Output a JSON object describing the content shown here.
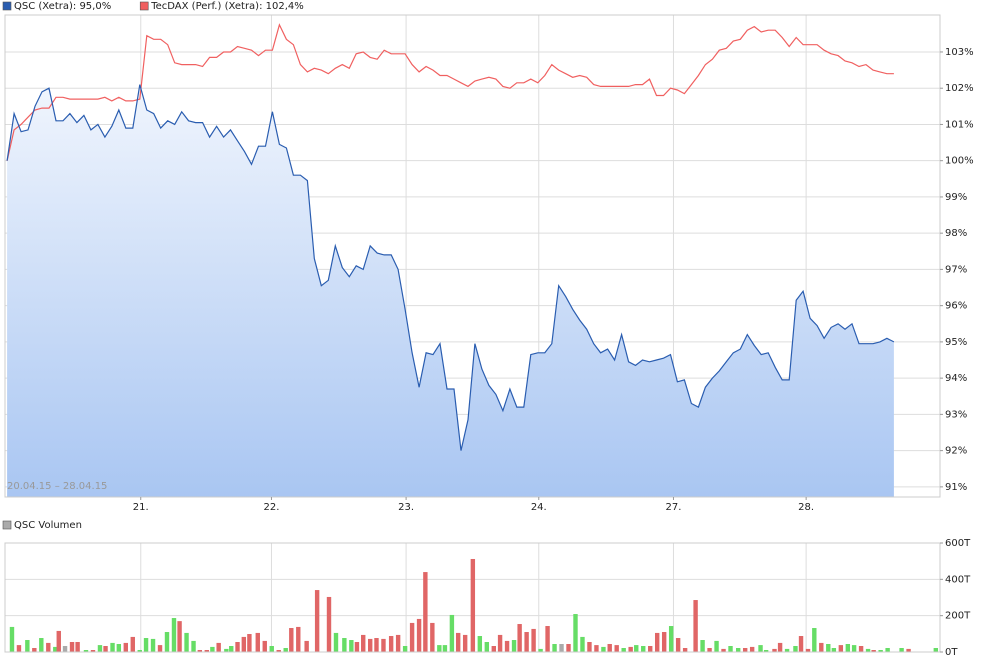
{
  "chart_data": [
    {
      "type": "line",
      "annotation": "20.04.15 – 28.04.15",
      "x": [
        0,
        1,
        2,
        3,
        4,
        5,
        6,
        7,
        8,
        9,
        10,
        11,
        12,
        13,
        14,
        15,
        16,
        17,
        18,
        19,
        20,
        21,
        22,
        23,
        24,
        25,
        26,
        27,
        28,
        29,
        30,
        31,
        32,
        33,
        34,
        35,
        36,
        37,
        38,
        39,
        40,
        41,
        42,
        43,
        44,
        45,
        46,
        47,
        48,
        49,
        50,
        51,
        52,
        53,
        54,
        55,
        56,
        57,
        58,
        59,
        60,
        61,
        62,
        63,
        64,
        65,
        66,
        67,
        68,
        69,
        70,
        71,
        72,
        73,
        74,
        75,
        76,
        77,
        78,
        79,
        80,
        81,
        82,
        83,
        84,
        85,
        86,
        87,
        88,
        89,
        90,
        91,
        92,
        93,
        94,
        95,
        96,
        97,
        98,
        99,
        100,
        101,
        102,
        103,
        104,
        105,
        106,
        107,
        108,
        109,
        110,
        111,
        112,
        113,
        114,
        115,
        116,
        117,
        118,
        119,
        120,
        121,
        122,
        123,
        124,
        125,
        126,
        127
      ],
      "series": [
        {
          "name": "QSC (Xetra): 95,0%",
          "color": "#2a5db0",
          "fill": true,
          "values": [
            100.0,
            101.3,
            100.8,
            100.85,
            101.5,
            101.9,
            102.0,
            101.1,
            101.1,
            101.3,
            101.05,
            101.25,
            100.85,
            101.0,
            100.65,
            100.95,
            101.4,
            100.9,
            100.9,
            102.1,
            101.4,
            101.3,
            100.9,
            101.1,
            101.0,
            101.35,
            101.1,
            101.05,
            101.05,
            100.65,
            100.95,
            100.65,
            100.85,
            100.55,
            100.25,
            99.9,
            100.4,
            100.4,
            101.35,
            100.45,
            100.35,
            99.6,
            99.6,
            99.45,
            97.3,
            96.55,
            96.7,
            97.65,
            97.05,
            96.8,
            97.1,
            97.0,
            97.65,
            97.45,
            97.4,
            97.4,
            97.0,
            95.9,
            94.7,
            93.75,
            94.7,
            94.65,
            94.95,
            93.7,
            93.7,
            92.0,
            92.85,
            94.95,
            94.25,
            93.8,
            93.55,
            93.1,
            93.7,
            93.2,
            93.2,
            94.65,
            94.7,
            94.7,
            94.95,
            96.55,
            96.25,
            95.9,
            95.6,
            95.35,
            94.95,
            94.7,
            94.8,
            94.5,
            95.2,
            94.45,
            94.35,
            94.5,
            94.45,
            94.5,
            94.55,
            94.65,
            93.9,
            93.95,
            93.3,
            93.2,
            93.75,
            94.0,
            94.2,
            94.45,
            94.7,
            94.8,
            95.2,
            94.9,
            94.65,
            94.7,
            94.3,
            93.95,
            93.95,
            96.15,
            96.4,
            95.65,
            95.45,
            95.1,
            95.4,
            95.5,
            95.35,
            95.5,
            94.95,
            94.95,
            94.95,
            95.0,
            95.1,
            95.0
          ]
        },
        {
          "name": "TecDAX (Perf.) (Xetra): 102,4%",
          "color": "#f06060",
          "fill": false,
          "values": [
            100.0,
            100.85,
            101.0,
            101.2,
            101.4,
            101.45,
            101.45,
            101.75,
            101.75,
            101.7,
            101.7,
            101.7,
            101.7,
            101.7,
            101.75,
            101.65,
            101.75,
            101.65,
            101.65,
            101.7,
            103.45,
            103.35,
            103.35,
            103.2,
            102.7,
            102.65,
            102.65,
            102.65,
            102.6,
            102.85,
            102.85,
            103.0,
            103.0,
            103.15,
            103.1,
            103.05,
            102.9,
            103.05,
            103.05,
            103.75,
            103.35,
            103.2,
            102.65,
            102.45,
            102.55,
            102.5,
            102.4,
            102.55,
            102.65,
            102.55,
            102.95,
            103.0,
            102.85,
            102.8,
            103.05,
            102.95,
            102.95,
            102.95,
            102.65,
            102.45,
            102.6,
            102.5,
            102.35,
            102.35,
            102.25,
            102.15,
            102.05,
            102.2,
            102.25,
            102.3,
            102.25,
            102.05,
            102.0,
            102.15,
            102.15,
            102.25,
            102.15,
            102.35,
            102.65,
            102.5,
            102.4,
            102.3,
            102.35,
            102.3,
            102.1,
            102.05,
            102.05,
            102.05,
            102.05,
            102.05,
            102.1,
            102.1,
            102.25,
            101.8,
            101.8,
            102.0,
            101.95,
            101.85,
            102.1,
            102.35,
            102.65,
            102.8,
            103.05,
            103.1,
            103.3,
            103.35,
            103.6,
            103.7,
            103.55,
            103.6,
            103.6,
            103.4,
            103.15,
            103.4,
            103.2,
            103.2,
            103.2,
            103.05,
            102.95,
            102.9,
            102.75,
            102.7,
            102.6,
            102.65,
            102.5,
            102.45,
            102.4,
            102.4
          ]
        }
      ],
      "xlim": [
        -0.3,
        133.6
      ],
      "xticks": [
        {
          "value": 19.14,
          "label": "21."
        },
        {
          "value": 37.86,
          "label": "22."
        },
        {
          "value": 57.14,
          "label": "23."
        },
        {
          "value": 76.14,
          "label": "24."
        },
        {
          "value": 95.43,
          "label": "27."
        },
        {
          "value": 114.43,
          "label": "28."
        }
      ],
      "ylim": [
        90.72,
        104.02
      ],
      "yticks": [
        {
          "value": 91,
          "label": "91%"
        },
        {
          "value": 92,
          "label": "92%"
        },
        {
          "value": 93,
          "label": "93%"
        },
        {
          "value": 94,
          "label": "94%"
        },
        {
          "value": 95,
          "label": "95%"
        },
        {
          "value": 96,
          "label": "96%"
        },
        {
          "value": 97,
          "label": "97%"
        },
        {
          "value": 98,
          "label": "98%"
        },
        {
          "value": 99,
          "label": "99%"
        },
        {
          "value": 100,
          "label": "100%"
        },
        {
          "value": 101,
          "label": "101%"
        },
        {
          "value": 102,
          "label": "102%"
        },
        {
          "value": 103,
          "label": "103%"
        }
      ],
      "grid": true
    },
    {
      "type": "bar",
      "x": [
        0.7,
        1.7,
        2.9,
        3.9,
        4.9,
        5.9,
        6.9,
        7.4,
        8.3,
        9.3,
        10.1,
        11.3,
        12.3,
        13.3,
        14.1,
        15.1,
        16,
        17,
        18,
        19,
        19.9,
        20.9,
        21.9,
        22.9,
        23.9,
        24.7,
        25.7,
        26.7,
        27.6,
        28.6,
        29.4,
        30.3,
        31.4,
        32.1,
        33,
        33.9,
        34.7,
        35.9,
        36.9,
        37.9,
        38.9,
        39.9,
        40.7,
        41.7,
        42.9,
        44.4,
        46.1,
        47.1,
        48.3,
        49.3,
        50.1,
        51,
        52,
        52.9,
        53.9,
        55,
        56,
        57,
        58,
        59,
        59.9,
        60.9,
        61.9,
        62.7,
        63.7,
        64.6,
        65.6,
        66.7,
        67.7,
        68.7,
        69.7,
        70.6,
        71.6,
        72.6,
        73.4,
        74.4,
        75.4,
        76.4,
        77.4,
        78.4,
        79.4,
        80.4,
        81.4,
        82.4,
        83.4,
        84.4,
        85.4,
        86.3,
        87.3,
        88.3,
        89.3,
        90.1,
        91.1,
        92.1,
        93.1,
        94.1,
        95.1,
        96.1,
        97.1,
        98.6,
        99.6,
        100.6,
        101.6,
        102.6,
        103.6,
        104.7,
        105.7,
        106.7,
        107.9,
        108.7,
        109.9,
        110.7,
        111.7,
        112.9,
        113.7,
        114.7,
        115.6,
        116.6,
        117.6,
        118.4,
        119.4,
        120.4,
        121.3,
        122.3,
        123.3,
        124.1,
        125.1,
        126.1,
        128.1,
        129.1,
        133
      ],
      "series": [
        {
          "name": "QSC Volumen",
          "color": "#aaaaaa",
          "values": [
            138,
            38,
            66,
            22,
            77,
            50,
            28,
            116,
            33,
            55,
            55,
            11,
            11,
            38,
            33,
            50,
            44,
            50,
            83,
            11,
            77,
            72,
            38,
            110,
            187,
            170,
            105,
            61,
            11,
            11,
            28,
            50,
            17,
            33,
            55,
            83,
            99,
            105,
            61,
            33,
            11,
            22,
            132,
            138,
            61,
            341,
            303,
            105,
            77,
            66,
            55,
            94,
            72,
            77,
            72,
            88,
            94,
            33,
            160,
            182,
            440,
            160,
            38,
            38,
            204,
            105,
            94,
            512,
            88,
            55,
            33,
            94,
            61,
            66,
            154,
            110,
            127,
            17,
            143,
            44,
            44,
            44,
            209,
            83,
            55,
            38,
            28,
            44,
            38,
            22,
            28,
            38,
            33,
            33,
            105,
            110,
            143,
            77,
            22,
            286,
            66,
            22,
            61,
            17,
            33,
            22,
            22,
            28,
            38,
            11,
            17,
            50,
            17,
            33,
            88,
            17,
            132,
            50,
            44,
            22,
            38,
            44,
            38,
            33,
            17,
            11,
            11,
            22,
            22,
            17,
            22
          ],
          "colors": [
            "#66dd66",
            "#e06666",
            "#66dd66",
            "#e06666",
            "#66dd66",
            "#e06666",
            "#66dd66",
            "#e06666",
            "#aaaaaa",
            "#e06666",
            "#e06666",
            "#66dd66",
            "#e06666",
            "#66dd66",
            "#e06666",
            "#66dd66",
            "#66dd66",
            "#e06666",
            "#e06666",
            "#66dd66",
            "#66dd66",
            "#66dd66",
            "#e06666",
            "#66dd66",
            "#66dd66",
            "#e06666",
            "#66dd66",
            "#66dd66",
            "#e06666",
            "#e06666",
            "#66dd66",
            "#e06666",
            "#66dd66",
            "#66dd66",
            "#e06666",
            "#e06666",
            "#e06666",
            "#e06666",
            "#e06666",
            "#66dd66",
            "#e06666",
            "#66dd66",
            "#e06666",
            "#e06666",
            "#e06666",
            "#e06666",
            "#e06666",
            "#66dd66",
            "#66dd66",
            "#66dd66",
            "#e06666",
            "#e06666",
            "#e06666",
            "#e06666",
            "#e06666",
            "#e06666",
            "#e06666",
            "#66dd66",
            "#e06666",
            "#e06666",
            "#e06666",
            "#e06666",
            "#66dd66",
            "#66dd66",
            "#66dd66",
            "#e06666",
            "#e06666",
            "#e06666",
            "#66dd66",
            "#66dd66",
            "#e06666",
            "#e06666",
            "#e06666",
            "#66dd66",
            "#e06666",
            "#e06666",
            "#e06666",
            "#66dd66",
            "#e06666",
            "#66dd66",
            "#aaaaaa",
            "#e06666",
            "#66dd66",
            "#66dd66",
            "#e06666",
            "#e06666",
            "#66dd66",
            "#e06666",
            "#e06666",
            "#66dd66",
            "#e06666",
            "#66dd66",
            "#66dd66",
            "#e06666",
            "#e06666",
            "#e06666",
            "#66dd66",
            "#e06666",
            "#e06666",
            "#e06666",
            "#66dd66",
            "#e06666",
            "#66dd66",
            "#e06666",
            "#66dd66",
            "#66dd66",
            "#e06666",
            "#e06666",
            "#66dd66",
            "#66dd66",
            "#e06666",
            "#e06666",
            "#66dd66",
            "#66dd66",
            "#e06666",
            "#e06666",
            "#66dd66",
            "#e06666",
            "#66dd66",
            "#66dd66",
            "#e06666",
            "#66dd66",
            "#66dd66",
            "#e06666",
            "#66dd66",
            "#e06666",
            "#66dd66",
            "#66dd66",
            "#66dd66",
            "#e06666",
            "#66dd66"
          ]
        }
      ],
      "xlim": [
        -0.3,
        133.6
      ],
      "ylim": [
        0,
        600
      ],
      "yticks": [
        {
          "value": 0,
          "label": "0T"
        },
        {
          "value": 200,
          "label": "200T"
        },
        {
          "value": 400,
          "label": "400T"
        },
        {
          "value": 600,
          "label": "600T"
        }
      ],
      "grid": true
    }
  ]
}
